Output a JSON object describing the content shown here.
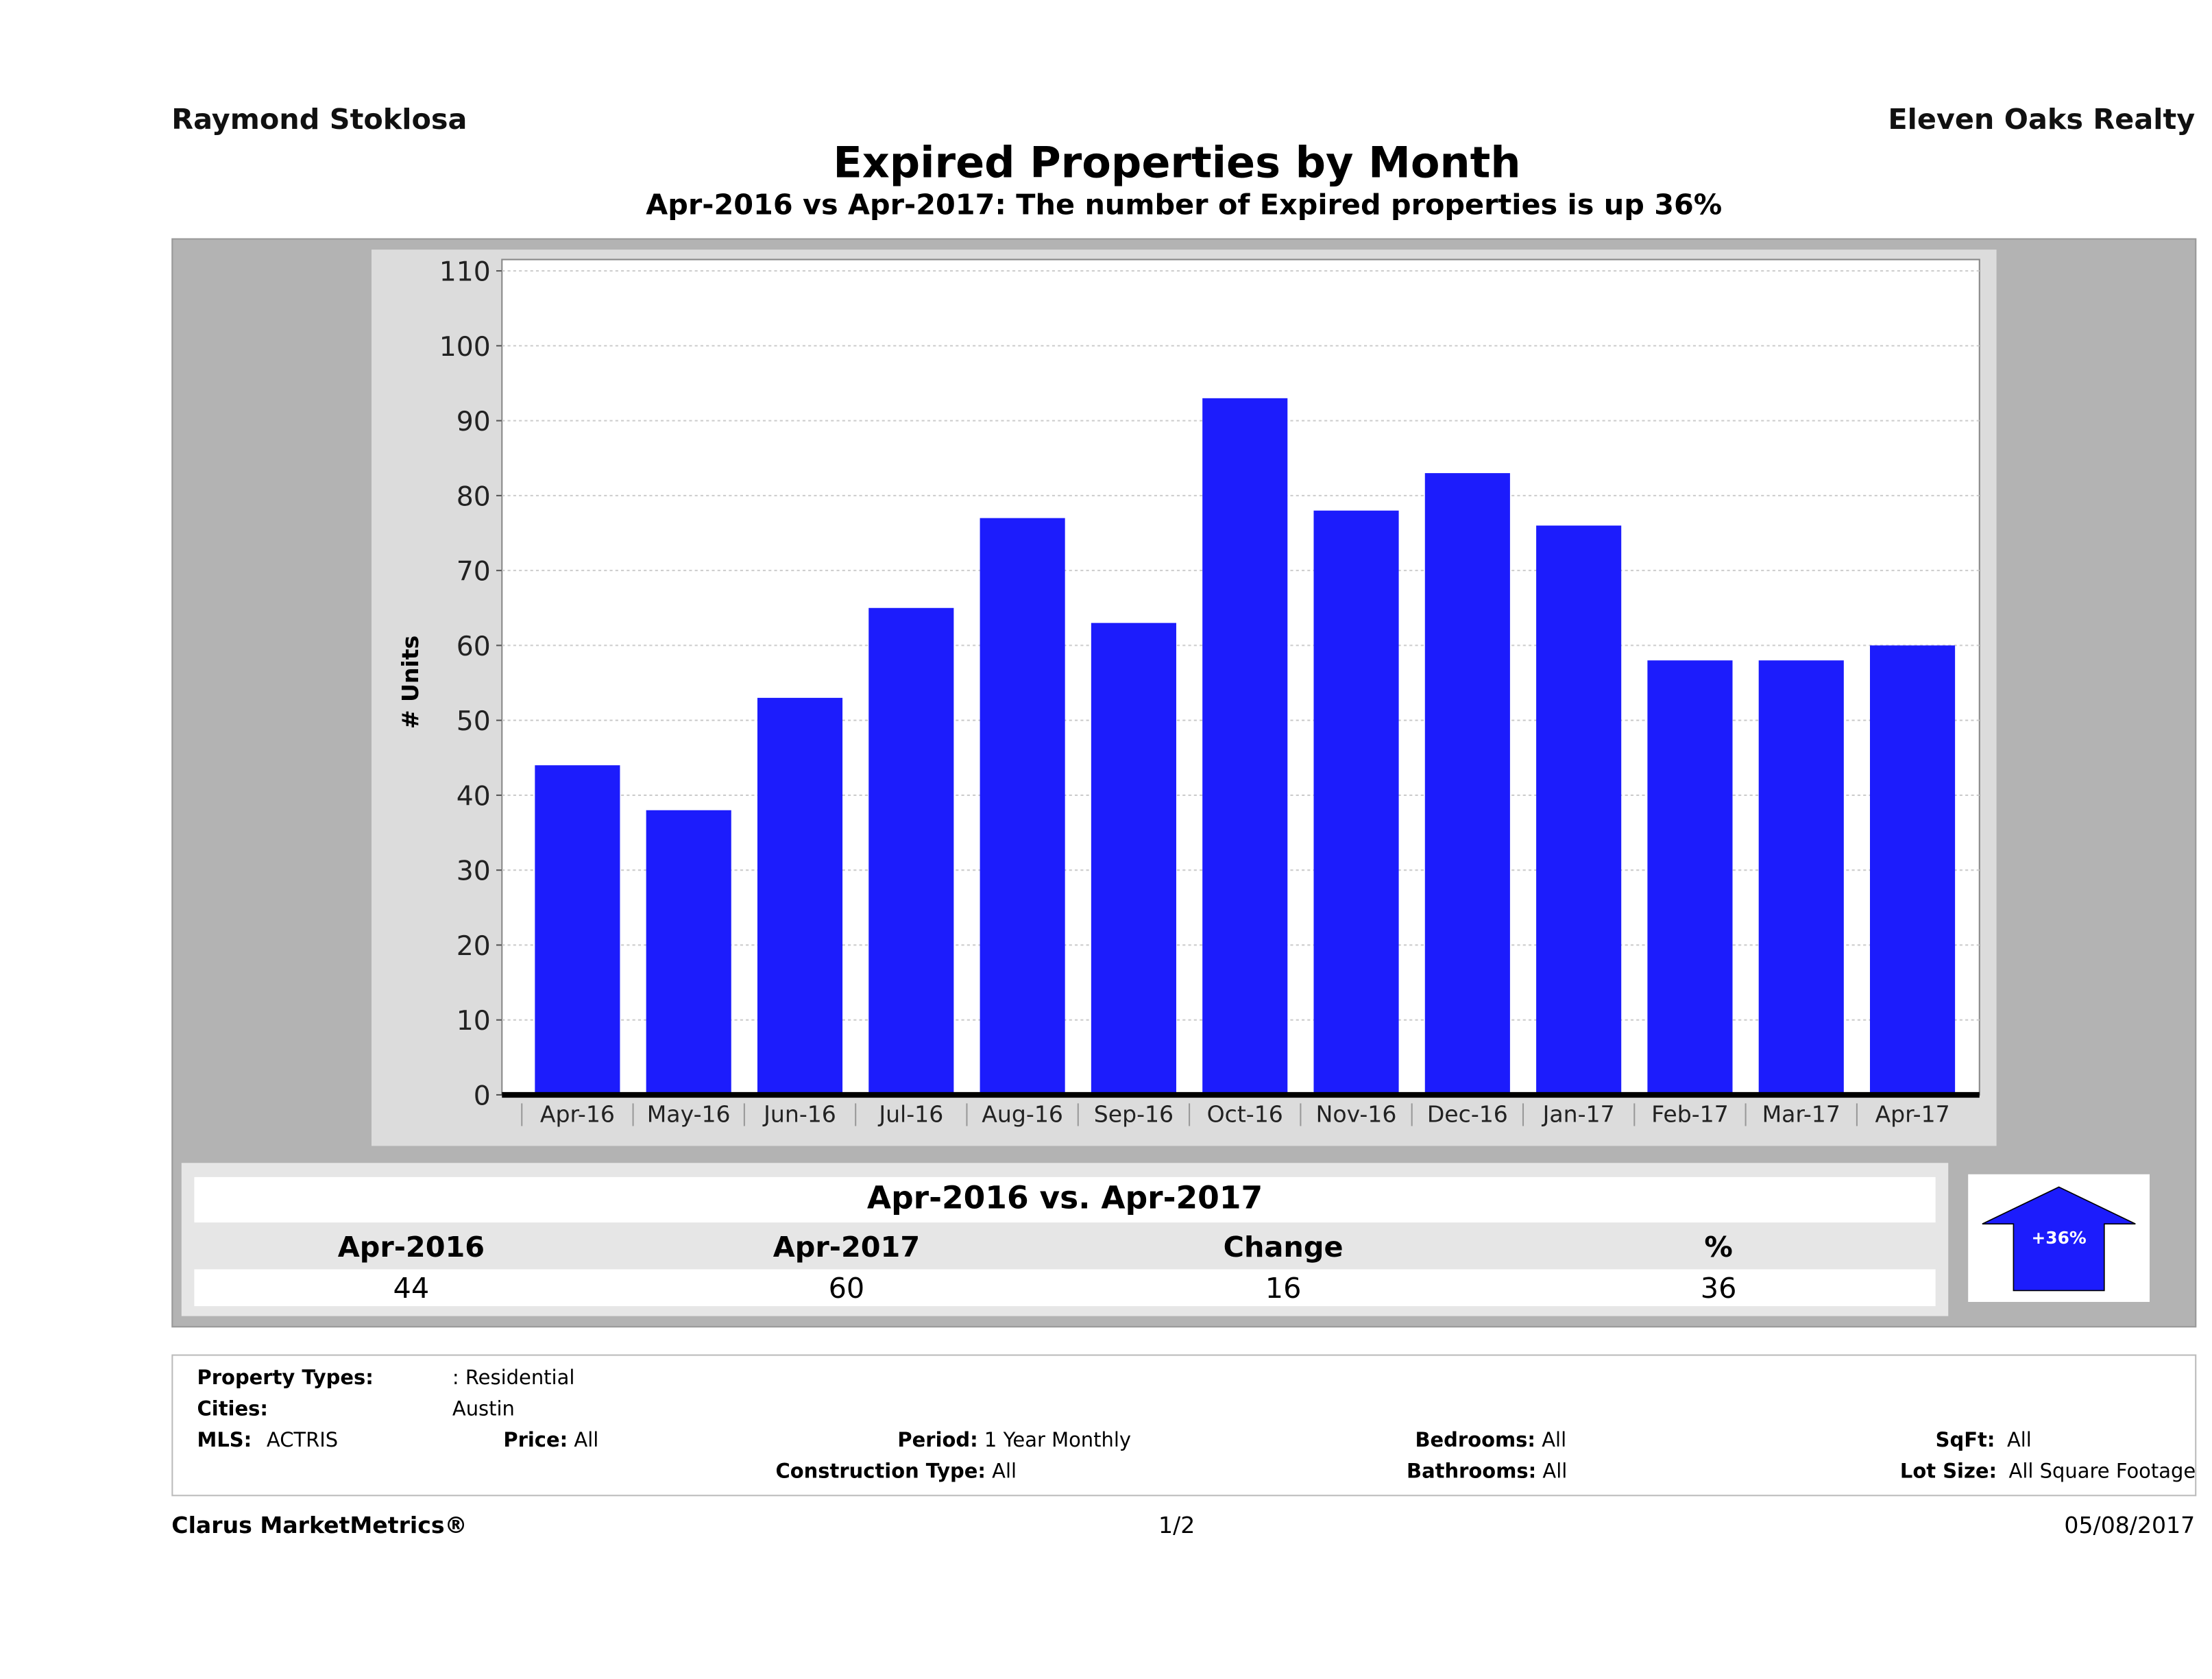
{
  "header": {
    "agent": "Raymond Stoklosa",
    "company": "Eleven Oaks Realty"
  },
  "title": "Expired Properties by Month",
  "subtitle": "Apr-2016 vs Apr-2017: The number of Expired  properties is up 36%",
  "chart_data": {
    "type": "bar",
    "title": "Expired Properties by Month",
    "xlabel": "",
    "ylabel": "# Units",
    "ylim": [
      0,
      110
    ],
    "yticks": [
      0,
      10,
      20,
      30,
      40,
      50,
      60,
      70,
      80,
      90,
      100,
      110
    ],
    "grid": true,
    "bar_color": "#1c1cfc",
    "categories": [
      "Apr-16",
      "May-16",
      "Jun-16",
      "Jul-16",
      "Aug-16",
      "Sep-16",
      "Oct-16",
      "Nov-16",
      "Dec-16",
      "Jan-17",
      "Feb-17",
      "Mar-17",
      "Apr-17"
    ],
    "values": [
      44,
      38,
      53,
      65,
      77,
      63,
      93,
      78,
      83,
      76,
      58,
      58,
      60
    ]
  },
  "summary": {
    "title": "Apr-2016 vs. Apr-2017",
    "headers": [
      "Apr-2016",
      "Apr-2017",
      "Change",
      "%"
    ],
    "values": [
      "44",
      "60",
      "16",
      "36"
    ],
    "badge": "+36%"
  },
  "info": {
    "property_types_label": "Property Types:",
    "property_types": ": Residential",
    "cities_label": "Cities:",
    "cities": "Austin",
    "mls_label": "MLS:",
    "mls": "ACTRIS",
    "price_label": "Price:",
    "price": "All",
    "period_label": "Period:",
    "period": "1 Year Monthly",
    "construction_label": "Construction Type:",
    "construction": "All",
    "bedrooms_label": "Bedrooms:",
    "bedrooms": "All",
    "bathrooms_label": "Bathrooms:",
    "bathrooms": "All",
    "sqft_label": "SqFt:",
    "sqft": "All",
    "lot_label": "Lot Size:",
    "lot": "All Square Footage"
  },
  "footer": {
    "brand": "Clarus MarketMetrics®",
    "page": "1/2",
    "date": "05/08/2017"
  }
}
